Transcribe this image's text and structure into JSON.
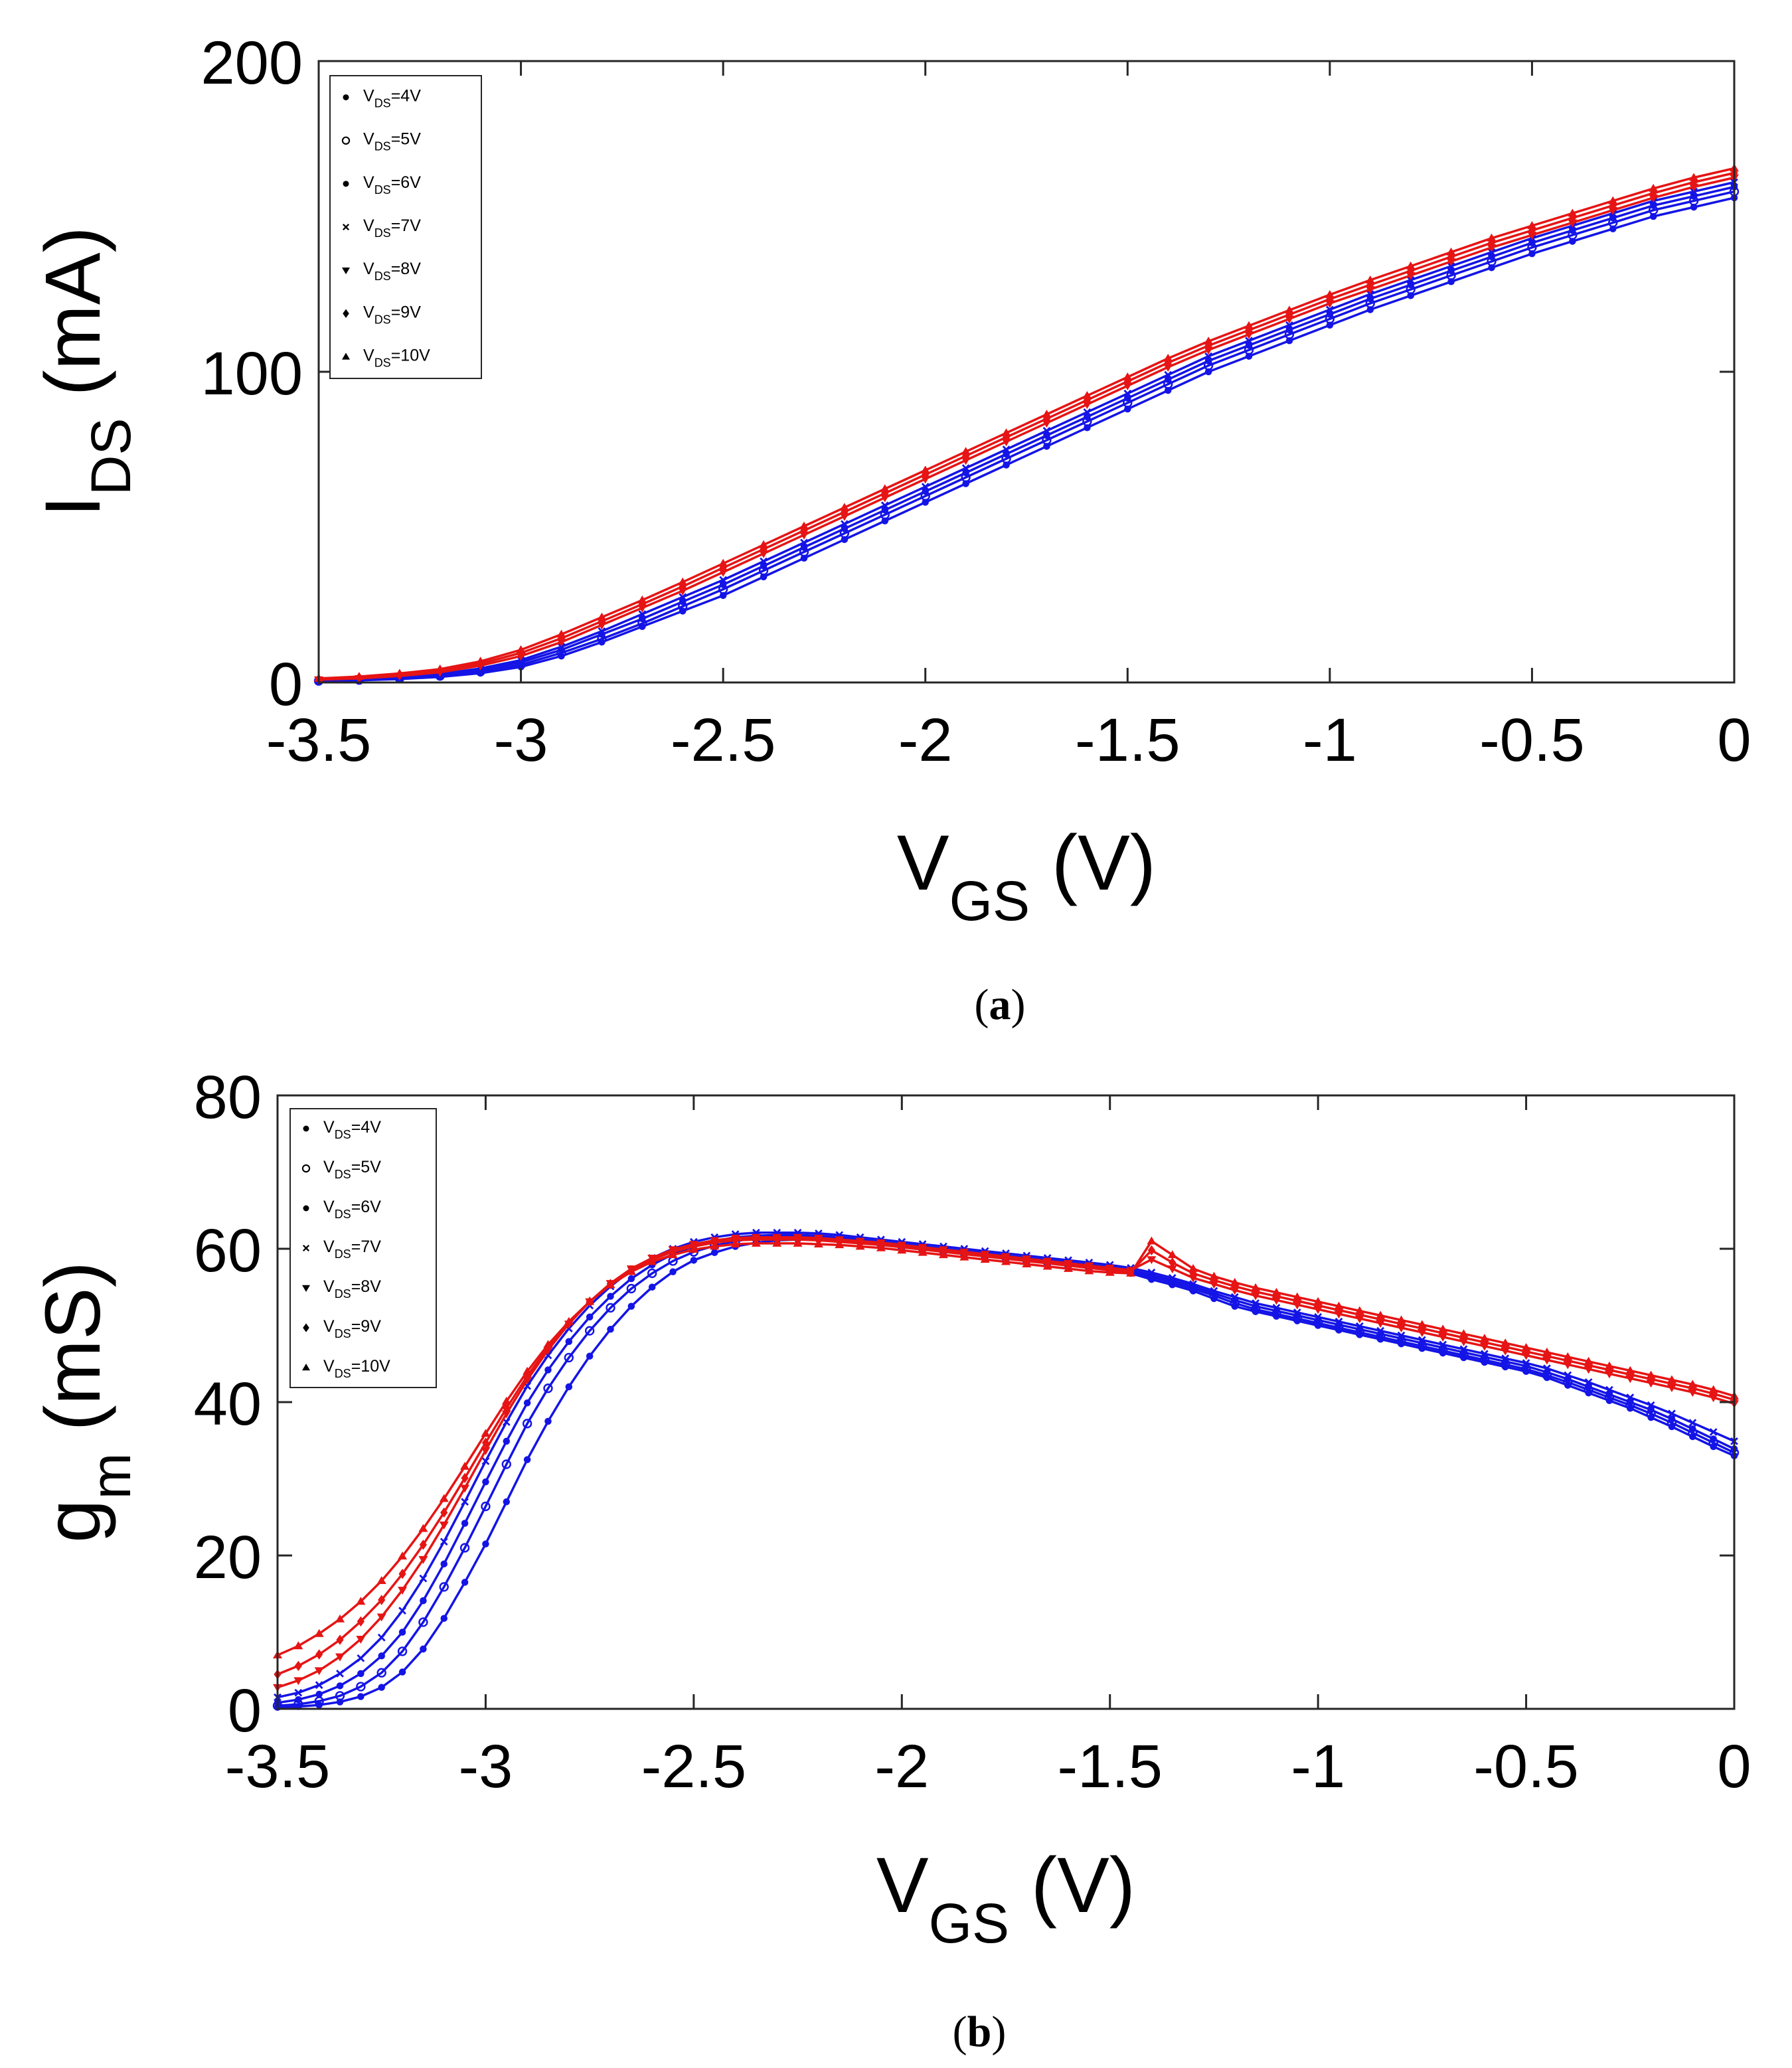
{
  "chart_data": [
    {
      "id": "a",
      "type": "line",
      "caption_label": "a",
      "xlabel": {
        "main": "V",
        "sub": "GS",
        "unit": " (V)"
      },
      "ylabel": {
        "main": "I",
        "sub": "DS",
        "unit": " (mA)"
      },
      "xlim": [
        -3.5,
        0
      ],
      "ylim": [
        0,
        200
      ],
      "xticks": [
        -3.5,
        -3,
        -2.5,
        -2,
        -1.5,
        -1,
        -0.5,
        0
      ],
      "xtick_labels": [
        "-3.5",
        "-3",
        "-2.5",
        "-2",
        "-1.5",
        "-1",
        "-0.5",
        "0"
      ],
      "yticks": [
        0,
        100,
        200
      ],
      "ytick_labels": [
        "0",
        "100",
        "200"
      ],
      "x_start": -3.5,
      "x_step": 0.1,
      "series": [
        {
          "name": "VDS=4V",
          "color": "#1414e6",
          "marker": "dot",
          "values": [
            0.4,
            0.7,
            1.1,
            1.8,
            3,
            5,
            8.5,
            13,
            18,
            23,
            28,
            34,
            40,
            46,
            52,
            58,
            64,
            70,
            76,
            82,
            88,
            94,
            100,
            105,
            110,
            115,
            120,
            124.5,
            129,
            133.5,
            138,
            142,
            146,
            150,
            153,
            156
          ]
        },
        {
          "name": "VDS=5V",
          "color": "#1414e6",
          "marker": "circle",
          "values": [
            0.5,
            0.8,
            1.3,
            2.1,
            3.5,
            5.7,
            9.5,
            14,
            19,
            24.5,
            30,
            36,
            42,
            48,
            54,
            60,
            66,
            72,
            78,
            84,
            90,
            96,
            102,
            107,
            112,
            117,
            122,
            126.5,
            131,
            135.5,
            140,
            144,
            148,
            152,
            155,
            158
          ]
        },
        {
          "name": "VDS=6V",
          "color": "#1414e6",
          "marker": "dot",
          "values": [
            0.6,
            0.9,
            1.5,
            2.4,
            4,
            6.5,
            10.5,
            15.5,
            20.5,
            26,
            31.5,
            37.5,
            43.5,
            49.5,
            55.5,
            61.5,
            67.5,
            73.5,
            79.5,
            85.5,
            91.5,
            97.5,
            103.5,
            108.5,
            113.5,
            118.5,
            123.5,
            128,
            132.5,
            137,
            141.5,
            145.5,
            149.5,
            153.5,
            156.5,
            159.5
          ]
        },
        {
          "name": "VDS=7V",
          "color": "#1414e6",
          "marker": "x",
          "values": [
            0.7,
            1,
            1.7,
            2.7,
            4.5,
            7.2,
            11.5,
            16.5,
            22,
            27.5,
            33,
            39,
            45,
            51,
            57,
            63,
            69,
            75,
            81,
            87,
            93,
            99,
            105,
            110,
            115,
            120,
            125,
            129.5,
            134,
            138.5,
            143,
            147,
            151,
            155,
            158,
            161
          ]
        },
        {
          "name": "VDS=8V",
          "color": "#e61414",
          "marker": "triangle-down",
          "values": [
            0.9,
            1.3,
            2.1,
            3.3,
            5.4,
            8.5,
            13,
            18.5,
            24,
            29.5,
            35.5,
            41.5,
            47.5,
            53.5,
            59.5,
            65.5,
            71.5,
            77.5,
            83.5,
            89.5,
            95.5,
            101.5,
            107,
            112,
            117,
            122,
            126.5,
            131,
            135.5,
            140,
            144,
            148,
            152,
            156,
            159.5,
            162.5
          ]
        },
        {
          "name": "VDS=9V",
          "color": "#e61414",
          "marker": "diamond",
          "values": [
            1.1,
            1.6,
            2.5,
            3.8,
            6.1,
            9.5,
            14.2,
            19.7,
            25.2,
            30.9,
            36.9,
            42.9,
            48.9,
            54.9,
            60.9,
            66.9,
            72.9,
            78.9,
            84.9,
            90.9,
            96.9,
            102.9,
            108.4,
            113.4,
            118.4,
            123.4,
            128,
            132.5,
            137,
            141.5,
            145.5,
            149.5,
            153.5,
            157.5,
            161,
            164
          ]
        },
        {
          "name": "VDS=10V",
          "color": "#e61414",
          "marker": "triangle-up",
          "values": [
            1.3,
            1.9,
            2.9,
            4.3,
            6.8,
            10.5,
            15.5,
            21,
            26.5,
            32.3,
            38.3,
            44.3,
            50.3,
            56.3,
            62.3,
            68.3,
            74.3,
            80.3,
            86.3,
            92.3,
            98.3,
            104.3,
            109.8,
            114.8,
            119.8,
            124.8,
            129.5,
            134,
            138.5,
            143,
            147,
            151,
            155,
            159,
            162.5,
            165.5
          ]
        }
      ],
      "legend": {
        "position": "top-left",
        "entries": [
          {
            "pre": "V",
            "sub": "DS",
            "post": "=4V"
          },
          {
            "pre": "V",
            "sub": "DS",
            "post": "=5V"
          },
          {
            "pre": "V",
            "sub": "DS",
            "post": "=6V"
          },
          {
            "pre": "V",
            "sub": "DS",
            "post": "=7V"
          },
          {
            "pre": "V",
            "sub": "DS",
            "post": "=8V"
          },
          {
            "pre": "V",
            "sub": "DS",
            "post": "=9V"
          },
          {
            "pre": "V",
            "sub": "DS",
            "post": "=10V"
          }
        ]
      }
    },
    {
      "id": "b",
      "type": "line",
      "caption_label": "b",
      "xlabel": {
        "main": "V",
        "sub": "GS",
        "unit": " (V)"
      },
      "ylabel": {
        "main": "g",
        "sub": "m",
        "unit": " (mS)"
      },
      "xlim": [
        -3.5,
        0
      ],
      "ylim": [
        0,
        80
      ],
      "xticks": [
        -3.5,
        -3,
        -2.5,
        -2,
        -1.5,
        -1,
        -0.5,
        0
      ],
      "xtick_labels": [
        "-3.5",
        "-3",
        "-2.5",
        "-2",
        "-1.5",
        "-1",
        "-0.5",
        "0"
      ],
      "yticks": [
        0,
        20,
        40,
        60,
        80
      ],
      "ytick_labels": [
        "0",
        "20",
        "40",
        "60",
        "80"
      ],
      "x_start": -3.5,
      "x_step": 0.05,
      "series": [
        {
          "name": "VDS=4V",
          "color": "#1414e6",
          "marker": "dot",
          "values": [
            0.2,
            0.3,
            0.5,
            0.9,
            1.6,
            2.8,
            4.8,
            7.8,
            11.8,
            16.5,
            21.5,
            27,
            32.5,
            37.5,
            42,
            46,
            49.5,
            52.5,
            55,
            57,
            58.5,
            59.5,
            60.3,
            60.8,
            61.1,
            61.2,
            61.2,
            61.1,
            60.9,
            60.6,
            60.3,
            60,
            59.7,
            59.4,
            59.1,
            58.8,
            58.5,
            58.2,
            57.9,
            57.6,
            57.3,
            56.8,
            56,
            55.3,
            54.5,
            53.5,
            52.5,
            51.8,
            51.2,
            50.6,
            50,
            49.4,
            48.8,
            48.2,
            47.6,
            47,
            46.4,
            45.8,
            45.2,
            44.6,
            44,
            43.2,
            42.2,
            41.2,
            40.2,
            39.2,
            38,
            36.8,
            35.5,
            34.2,
            33
          ]
        },
        {
          "name": "VDS=5V",
          "color": "#1414e6",
          "marker": "circle",
          "values": [
            0.4,
            0.6,
            1,
            1.7,
            2.9,
            4.7,
            7.5,
            11.3,
            15.9,
            21,
            26.4,
            31.9,
            37.2,
            41.8,
            45.8,
            49.3,
            52.3,
            54.8,
            56.8,
            58.4,
            59.6,
            60.4,
            61,
            61.4,
            61.6,
            61.6,
            61.5,
            61.3,
            61,
            60.7,
            60.4,
            60.1,
            59.8,
            59.5,
            59.2,
            58.9,
            58.6,
            58.3,
            58,
            57.7,
            57.4,
            57,
            56.3,
            55.6,
            54.8,
            53.9,
            52.9,
            52.1,
            51.5,
            50.9,
            50.3,
            49.7,
            49.1,
            48.5,
            47.9,
            47.3,
            46.7,
            46.1,
            45.5,
            44.9,
            44.3,
            43.5,
            42.6,
            41.6,
            40.6,
            39.6,
            38.5,
            37.3,
            36,
            34.7,
            33.4
          ]
        },
        {
          "name": "VDS=6V",
          "color": "#1414e6",
          "marker": "dot",
          "values": [
            0.8,
            1.2,
            1.9,
            3,
            4.6,
            6.9,
            10,
            14.1,
            18.9,
            24.2,
            29.6,
            34.9,
            39.9,
            44.2,
            47.9,
            51.1,
            53.8,
            56.1,
            57.9,
            59.3,
            60.3,
            61,
            61.5,
            61.7,
            61.8,
            61.8,
            61.7,
            61.5,
            61.2,
            60.9,
            60.6,
            60.3,
            60,
            59.7,
            59.4,
            59.1,
            58.8,
            58.5,
            58.2,
            57.9,
            57.6,
            57.2,
            56.6,
            55.9,
            55.1,
            54.2,
            53.3,
            52.5,
            51.9,
            51.3,
            50.7,
            50.1,
            49.5,
            48.9,
            48.3,
            47.7,
            47.1,
            46.5,
            45.9,
            45.3,
            44.7,
            43.9,
            43,
            42,
            41,
            40,
            39,
            37.8,
            36.5,
            35.2,
            33.9
          ]
        },
        {
          "name": "VDS=7V",
          "color": "#1414e6",
          "marker": "x",
          "values": [
            1.5,
            2.1,
            3.1,
            4.6,
            6.6,
            9.3,
            12.8,
            17,
            21.8,
            27,
            32.3,
            37.4,
            42.1,
            46.1,
            49.6,
            52.6,
            55.1,
            57.2,
            58.8,
            60,
            60.9,
            61.5,
            61.9,
            62.1,
            62.1,
            62.1,
            62,
            61.8,
            61.5,
            61.2,
            60.9,
            60.6,
            60.3,
            60,
            59.7,
            59.4,
            59.1,
            58.8,
            58.5,
            58.2,
            57.9,
            57.5,
            56.9,
            56.2,
            55.4,
            54.5,
            53.7,
            52.9,
            52.3,
            51.7,
            51.1,
            50.5,
            49.9,
            49.3,
            48.7,
            48.1,
            47.5,
            46.9,
            46.3,
            45.7,
            45.1,
            44.4,
            43.5,
            42.6,
            41.6,
            40.6,
            39.6,
            38.5,
            37.3,
            36.1,
            34.9
          ]
        },
        {
          "name": "VDS=8V",
          "color": "#e61414",
          "marker": "triangle-down",
          "values": [
            2.8,
            3.7,
            5,
            6.8,
            9.1,
            12,
            15.5,
            19.5,
            24,
            28.8,
            33.7,
            38.5,
            42.9,
            46.8,
            50.2,
            53.1,
            55.5,
            57.4,
            58.8,
            59.9,
            60.6,
            61.1,
            61.4,
            61.5,
            61.5,
            61.5,
            61.4,
            61.2,
            61,
            60.8,
            60.5,
            60.2,
            59.9,
            59.6,
            59.3,
            59,
            58.7,
            58.4,
            58.1,
            57.8,
            57.5,
            57.2,
            58.6,
            57.4,
            56.2,
            55.4,
            54.6,
            53.9,
            53.3,
            52.7,
            52.1,
            51.5,
            50.9,
            50.3,
            49.7,
            49.1,
            48.5,
            47.9,
            47.3,
            46.7,
            46.1,
            45.5,
            44.9,
            44.3,
            43.7,
            43.1,
            42.5,
            41.9,
            41.3,
            40.6,
            39.8
          ]
        },
        {
          "name": "VDS=9V",
          "color": "#e61414",
          "marker": "diamond",
          "values": [
            4.5,
            5.6,
            7.1,
            9,
            11.4,
            14.2,
            17.6,
            21.4,
            25.6,
            30.1,
            34.7,
            39.2,
            43.4,
            47.1,
            50.3,
            53.1,
            55.4,
            57.2,
            58.6,
            59.6,
            60.3,
            60.8,
            61.1,
            61.2,
            61.2,
            61.2,
            61.1,
            60.9,
            60.7,
            60.5,
            60.2,
            59.9,
            59.6,
            59.3,
            59,
            58.7,
            58.4,
            58.1,
            57.8,
            57.5,
            57.2,
            57,
            59.8,
            58.2,
            56.8,
            55.9,
            55.1,
            54.4,
            53.8,
            53.2,
            52.6,
            52,
            51.4,
            50.8,
            50.2,
            49.6,
            49,
            48.4,
            47.8,
            47.2,
            46.6,
            46,
            45.4,
            44.8,
            44.2,
            43.6,
            43,
            42.4,
            41.8,
            41.1,
            40.3
          ]
        },
        {
          "name": "VDS=10V",
          "color": "#e61414",
          "marker": "triangle-up",
          "values": [
            7,
            8.2,
            9.8,
            11.7,
            14,
            16.7,
            19.9,
            23.5,
            27.4,
            31.6,
            35.9,
            40.1,
            44,
            47.5,
            50.5,
            53.1,
            55.3,
            57,
            58.3,
            59.2,
            59.9,
            60.3,
            60.6,
            60.7,
            60.7,
            60.7,
            60.6,
            60.5,
            60.3,
            60.1,
            59.8,
            59.5,
            59.2,
            58.9,
            58.6,
            58.3,
            58,
            57.7,
            57.4,
            57.1,
            56.9,
            56.8,
            61,
            59.2,
            57.4,
            56.4,
            55.6,
            54.9,
            54.3,
            53.7,
            53.1,
            52.5,
            51.9,
            51.3,
            50.7,
            50.1,
            49.5,
            48.9,
            48.3,
            47.7,
            47.1,
            46.5,
            45.9,
            45.3,
            44.7,
            44.1,
            43.5,
            42.9,
            42.3,
            41.6,
            40.8
          ]
        }
      ],
      "legend": {
        "position": "top-left",
        "entries": [
          {
            "pre": "V",
            "sub": "DS",
            "post": "=4V"
          },
          {
            "pre": "V",
            "sub": "DS",
            "post": "=5V"
          },
          {
            "pre": "V",
            "sub": "DS",
            "post": "=6V"
          },
          {
            "pre": "V",
            "sub": "DS",
            "post": "=7V"
          },
          {
            "pre": "V",
            "sub": "DS",
            "post": "=8V"
          },
          {
            "pre": "V",
            "sub": "DS",
            "post": "=9V"
          },
          {
            "pre": "V",
            "sub": "DS",
            "post": "=10V"
          }
        ]
      }
    }
  ]
}
